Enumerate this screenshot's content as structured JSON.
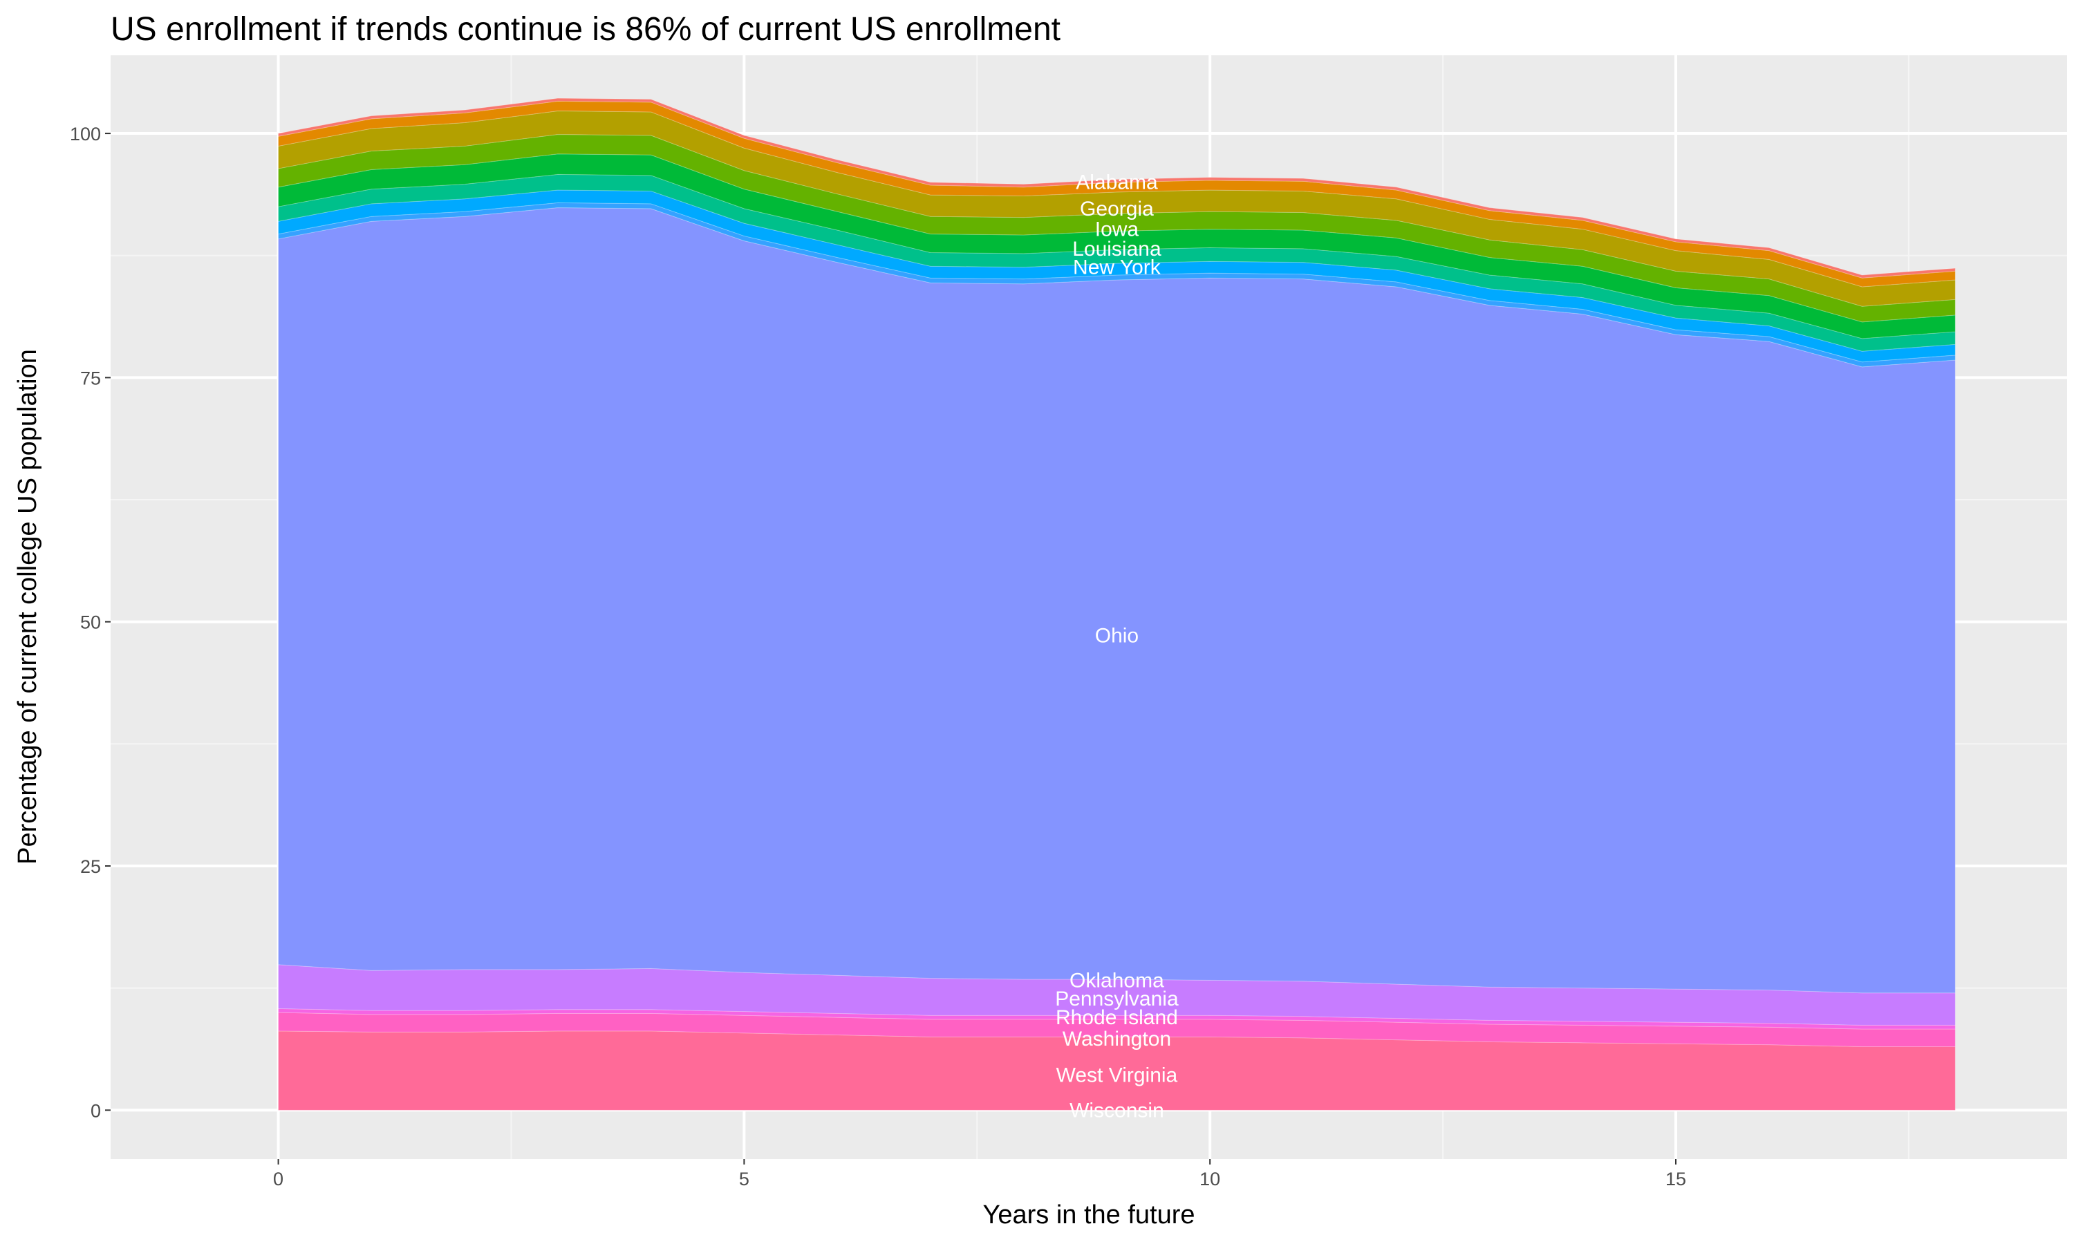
{
  "chart_data": {
    "type": "area",
    "stacked": true,
    "title": "US enrollment if trends continue is 86% of current US enrollment",
    "xlabel": "Years in the future",
    "ylabel": "Percentage of current college US population",
    "xlim": [
      -1.8,
      19.2
    ],
    "ylim": [
      -5,
      108
    ],
    "xticks": [
      0,
      5,
      10,
      15
    ],
    "yticks": [
      0,
      25,
      50,
      75,
      100
    ],
    "grid": true,
    "legend": "none",
    "x": [
      0,
      1,
      2,
      3,
      4,
      5,
      6,
      7,
      8,
      9,
      10,
      11,
      12,
      13,
      14,
      15,
      16,
      17,
      18
    ],
    "series_bottom_to_top": [
      {
        "color": "#FF6A98",
        "values": [
          8.1,
          8.0,
          8.0,
          8.1,
          8.1,
          7.9,
          7.7,
          7.5,
          7.5,
          7.5,
          7.5,
          7.4,
          7.2,
          7.0,
          6.9,
          6.8,
          6.7,
          6.5,
          6.5
        ]
      },
      {
        "color": "#FF61C3",
        "values": [
          1.9,
          1.8,
          1.8,
          1.8,
          1.8,
          1.8,
          1.8,
          1.8,
          1.8,
          1.8,
          1.8,
          1.8,
          1.8,
          1.8,
          1.8,
          1.8,
          1.8,
          1.8,
          1.8
        ]
      },
      {
        "color": "#F564E3",
        "values": [
          0.4,
          0.4,
          0.4,
          0.4,
          0.4,
          0.4,
          0.4,
          0.4,
          0.4,
          0.4,
          0.4,
          0.4,
          0.4,
          0.4,
          0.4,
          0.4,
          0.4,
          0.4,
          0.4
        ]
      },
      {
        "color": "#C77CFF",
        "values": [
          4.5,
          4.1,
          4.2,
          4.1,
          4.2,
          4.0,
          3.9,
          3.8,
          3.7,
          3.7,
          3.6,
          3.6,
          3.5,
          3.4,
          3.4,
          3.4,
          3.4,
          3.3,
          3.3
        ]
      },
      {
        "color": "#8494FF",
        "values": [
          74.3,
          76.7,
          77.1,
          78.0,
          77.8,
          74.9,
          73.0,
          71.2,
          71.2,
          71.6,
          71.9,
          71.9,
          71.4,
          69.8,
          69.0,
          67.0,
          66.4,
          64.1,
          64.8
        ]
      },
      {
        "color": "#35A2FF",
        "values": [
          0.5,
          0.5,
          0.5,
          0.5,
          0.5,
          0.5,
          0.5,
          0.5,
          0.5,
          0.5,
          0.5,
          0.5,
          0.5,
          0.5,
          0.5,
          0.5,
          0.5,
          0.5,
          0.5
        ]
      },
      {
        "color": "#00A9FF",
        "values": [
          1.3,
          1.3,
          1.3,
          1.3,
          1.3,
          1.3,
          1.3,
          1.2,
          1.2,
          1.2,
          1.2,
          1.2,
          1.2,
          1.2,
          1.2,
          1.2,
          1.1,
          1.1,
          1.1
        ]
      },
      {
        "color": "#00C08B",
        "values": [
          1.5,
          1.5,
          1.5,
          1.6,
          1.6,
          1.5,
          1.5,
          1.4,
          1.4,
          1.4,
          1.4,
          1.4,
          1.4,
          1.4,
          1.4,
          1.3,
          1.3,
          1.3,
          1.3
        ]
      },
      {
        "color": "#00BA38",
        "values": [
          2.0,
          2.0,
          2.0,
          2.1,
          2.1,
          2.0,
          1.9,
          1.9,
          1.9,
          1.9,
          1.9,
          1.9,
          1.9,
          1.8,
          1.8,
          1.8,
          1.8,
          1.7,
          1.7
        ]
      },
      {
        "color": "#64B200",
        "values": [
          1.9,
          1.9,
          1.9,
          2.0,
          2.0,
          1.9,
          1.8,
          1.8,
          1.8,
          1.8,
          1.8,
          1.8,
          1.8,
          1.8,
          1.7,
          1.7,
          1.7,
          1.6,
          1.6
        ]
      },
      {
        "color": "#B3A000",
        "values": [
          2.3,
          2.3,
          2.4,
          2.4,
          2.4,
          2.3,
          2.2,
          2.2,
          2.2,
          2.2,
          2.2,
          2.2,
          2.2,
          2.1,
          2.1,
          2.1,
          2.0,
          2.0,
          2.0
        ]
      },
      {
        "color": "#E38900",
        "values": [
          1.0,
          1.0,
          1.0,
          1.0,
          1.0,
          1.0,
          1.0,
          1.0,
          0.9,
          1.0,
          1.0,
          1.0,
          0.9,
          0.9,
          0.9,
          0.9,
          0.9,
          0.9,
          0.9
        ]
      },
      {
        "color": "#F8766D",
        "values": [
          0.3,
          0.3,
          0.3,
          0.3,
          0.3,
          0.3,
          0.3,
          0.3,
          0.3,
          0.3,
          0.3,
          0.3,
          0.3,
          0.3,
          0.3,
          0.3,
          0.3,
          0.3,
          0.3
        ]
      }
    ],
    "annotations": [
      {
        "text": "Alabama",
        "x": 9,
        "y": 95.0
      },
      {
        "text": "Georgia",
        "x": 9,
        "y": 92.3
      },
      {
        "text": "Iowa",
        "x": 9,
        "y": 90.2
      },
      {
        "text": "Louisiana",
        "x": 9,
        "y": 88.2
      },
      {
        "text": "New York",
        "x": 9,
        "y": 86.3
      },
      {
        "text": "Ohio",
        "x": 9,
        "y": 48.6
      },
      {
        "text": "Oklahoma",
        "x": 9,
        "y": 13.3
      },
      {
        "text": "Pennsylvania",
        "x": 9,
        "y": 11.4
      },
      {
        "text": "Rhode Island",
        "x": 9,
        "y": 9.5
      },
      {
        "text": "Washington",
        "x": 9,
        "y": 7.3
      },
      {
        "text": "West Virginia",
        "x": 9,
        "y": 3.6
      },
      {
        "text": "Wisconsin",
        "x": 9,
        "y": 0
      }
    ]
  }
}
